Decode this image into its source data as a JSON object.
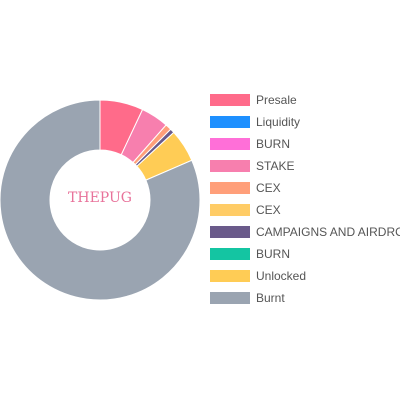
{
  "chart_data": {
    "type": "pie",
    "center_label": "THEPUG",
    "legend_position": "right",
    "slices": [
      {
        "label": "Presale",
        "value": 7.0,
        "color": "#ff6b8a"
      },
      {
        "label": "Liquidity",
        "value": 0.0,
        "color": "#1e90ff"
      },
      {
        "label": "BURN",
        "value": 0.0,
        "color": "#ff6fd8"
      },
      {
        "label": "STAKE",
        "value": 4.5,
        "color": "#f77fae"
      },
      {
        "label": "CEX",
        "value": 1.0,
        "color": "#ff9f7a"
      },
      {
        "label": "CEX",
        "value": 0.0,
        "color": "#ffcc66"
      },
      {
        "label": "CAMPAIGNS AND AIRDROPS",
        "value": 0.7,
        "color": "#6a5a8a"
      },
      {
        "label": "BURN",
        "value": 0.0,
        "color": "#14c5a2"
      },
      {
        "label": "Unlocked",
        "value": 5.3,
        "color": "#ffcc55"
      },
      {
        "label": "Burnt",
        "value": 81.5,
        "color": "#9aa4b1"
      }
    ]
  }
}
